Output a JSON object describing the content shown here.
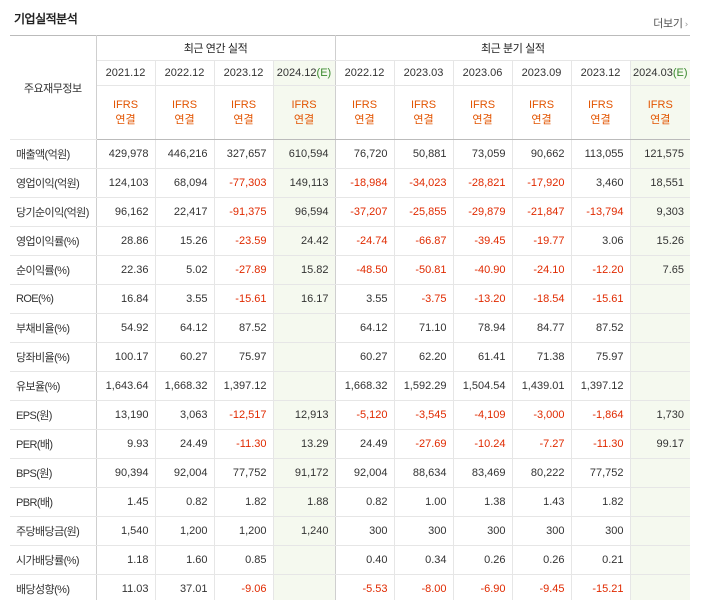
{
  "section_title": "기업실적분석",
  "more_label": "더보기",
  "header": {
    "row_label": "주요재무정보",
    "annual_group": "최근 연간 실적",
    "quarterly_group": "최근 분기 실적",
    "annual_periods": [
      "2021.12",
      "2022.12",
      "2023.12",
      "2024.12"
    ],
    "annual_estimate_tag": "(E)",
    "quarterly_periods": [
      "2022.12",
      "2023.03",
      "2023.06",
      "2023.09",
      "2023.12",
      "2024.03"
    ],
    "quarterly_estimate_tag": "(E)",
    "ifrs_line1": "IFRS",
    "ifrs_line2": "연결"
  },
  "rows": [
    {
      "label": "매출액(억원)",
      "values": [
        "429,978",
        "446,216",
        "327,657",
        "610,594",
        "76,720",
        "50,881",
        "73,059",
        "90,662",
        "113,055",
        "121,575"
      ]
    },
    {
      "label": "영업이익(억원)",
      "values": [
        "124,103",
        "68,094",
        "-77,303",
        "149,113",
        "-18,984",
        "-34,023",
        "-28,821",
        "-17,920",
        "3,460",
        "18,551"
      ]
    },
    {
      "label": "당기순이익(억원)",
      "values": [
        "96,162",
        "22,417",
        "-91,375",
        "96,594",
        "-37,207",
        "-25,855",
        "-29,879",
        "-21,847",
        "-13,794",
        "9,303"
      ]
    },
    {
      "label": "영업이익률(%)",
      "values": [
        "28.86",
        "15.26",
        "-23.59",
        "24.42",
        "-24.74",
        "-66.87",
        "-39.45",
        "-19.77",
        "3.06",
        "15.26"
      ]
    },
    {
      "label": "순이익률(%)",
      "values": [
        "22.36",
        "5.02",
        "-27.89",
        "15.82",
        "-48.50",
        "-50.81",
        "-40.90",
        "-24.10",
        "-12.20",
        "7.65"
      ]
    },
    {
      "label": "ROE(%)",
      "values": [
        "16.84",
        "3.55",
        "-15.61",
        "16.17",
        "3.55",
        "-3.75",
        "-13.20",
        "-18.54",
        "-15.61",
        ""
      ]
    },
    {
      "label": "부채비율(%)",
      "values": [
        "54.92",
        "64.12",
        "87.52",
        "",
        "64.12",
        "71.10",
        "78.94",
        "84.77",
        "87.52",
        ""
      ]
    },
    {
      "label": "당좌비율(%)",
      "values": [
        "100.17",
        "60.27",
        "75.97",
        "",
        "60.27",
        "62.20",
        "61.41",
        "71.38",
        "75.97",
        ""
      ]
    },
    {
      "label": "유보율(%)",
      "values": [
        "1,643.64",
        "1,668.32",
        "1,397.12",
        "",
        "1,668.32",
        "1,592.29",
        "1,504.54",
        "1,439.01",
        "1,397.12",
        ""
      ]
    },
    {
      "label": "EPS(원)",
      "values": [
        "13,190",
        "3,063",
        "-12,517",
        "12,913",
        "-5,120",
        "-3,545",
        "-4,109",
        "-3,000",
        "-1,864",
        "1,730"
      ]
    },
    {
      "label": "PER(배)",
      "values": [
        "9.93",
        "24.49",
        "-11.30",
        "13.29",
        "24.49",
        "-27.69",
        "-10.24",
        "-7.27",
        "-11.30",
        "99.17"
      ]
    },
    {
      "label": "BPS(원)",
      "values": [
        "90,394",
        "92,004",
        "77,752",
        "91,172",
        "92,004",
        "88,634",
        "83,469",
        "80,222",
        "77,752",
        ""
      ]
    },
    {
      "label": "PBR(배)",
      "values": [
        "1.45",
        "0.82",
        "1.82",
        "1.88",
        "0.82",
        "1.00",
        "1.38",
        "1.43",
        "1.82",
        ""
      ]
    },
    {
      "label": "주당배당금(원)",
      "values": [
        "1,540",
        "1,200",
        "1,200",
        "1,240",
        "300",
        "300",
        "300",
        "300",
        "300",
        ""
      ]
    },
    {
      "label": "시가배당률(%)",
      "values": [
        "1.18",
        "1.60",
        "0.85",
        "",
        "0.40",
        "0.34",
        "0.26",
        "0.26",
        "0.21",
        ""
      ]
    },
    {
      "label": "배당성향(%)",
      "values": [
        "11.03",
        "37.01",
        "-9.06",
        "",
        "-5.53",
        "-8.00",
        "-6.90",
        "-9.45",
        "-15.21",
        ""
      ]
    }
  ],
  "group_start_rows": [
    3,
    9,
    13
  ],
  "colors": {
    "negative": "#e02a00",
    "ifrs": "#e25400",
    "estimate_bg": "#f5f9ef",
    "estimate_tag": "#3a8a2e"
  }
}
